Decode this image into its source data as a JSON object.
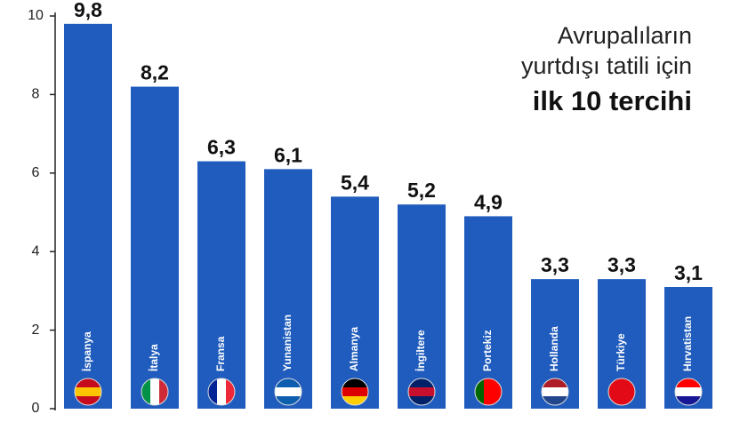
{
  "chart_data": {
    "type": "bar",
    "title_lines": [
      "Avrupalıların",
      "yurtdışı tatili için",
      "ilk 10 tercihi"
    ],
    "categories": [
      "İspanya",
      "İtalya",
      "Fransa",
      "Yunanistan",
      "Almanya",
      "İngiltere",
      "Portekiz",
      "Hollanda",
      "Türkiye",
      "Hırvatistan"
    ],
    "values": [
      9.8,
      8.2,
      6.3,
      6.1,
      5.4,
      5.2,
      4.9,
      3.3,
      3.3,
      3.1
    ],
    "value_labels": [
      "9,8",
      "8,2",
      "6,3",
      "6,1",
      "5,4",
      "5,2",
      "4,9",
      "3,3",
      "3,3",
      "3,1"
    ],
    "color": "#1f5cbd",
    "ylim": [
      0,
      10
    ],
    "yticks": [
      0,
      2,
      4,
      6,
      8,
      10
    ],
    "grid": false
  }
}
